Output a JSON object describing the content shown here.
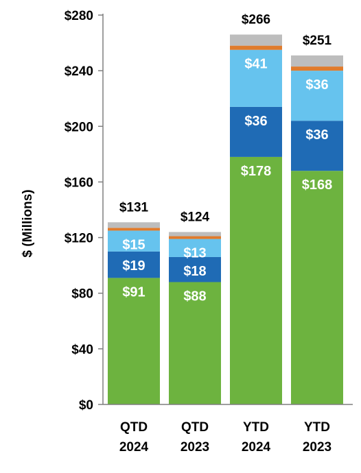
{
  "chart_data": {
    "type": "bar",
    "stacked": true,
    "categories": [
      [
        "QTD",
        "2024"
      ],
      [
        "QTD",
        "2023"
      ],
      [
        "YTD",
        "2024"
      ],
      [
        "YTD",
        "2023"
      ]
    ],
    "ylabel": "$ (Millions)",
    "ylim": [
      0,
      280
    ],
    "yticks": [
      0,
      40,
      80,
      120,
      160,
      200,
      240,
      280
    ],
    "ytick_labels": [
      "$0",
      "$40",
      "$80",
      "$120",
      "$160",
      "$200",
      "$240",
      "$280"
    ],
    "grid": false,
    "series": [
      {
        "values": [
          91,
          88,
          178,
          168
        ],
        "labels": [
          "$91",
          "$88",
          "$178",
          "$168"
        ],
        "color": "#6db33f"
      },
      {
        "values": [
          19,
          18,
          36,
          36
        ],
        "labels": [
          "$19",
          "$18",
          "$36",
          "$36"
        ],
        "color": "#1f6bb5"
      },
      {
        "values": [
          15,
          13,
          41,
          36
        ],
        "labels": [
          "$15",
          "$13",
          "$41",
          "$36"
        ],
        "color": "#66c3ee"
      },
      {
        "values": [
          2,
          2,
          3,
          3
        ],
        "color": "#e07b2c"
      },
      {
        "values": [
          4,
          3,
          8,
          8
        ],
        "color": "#bdbdbd"
      }
    ],
    "totals": [
      131,
      124,
      266,
      251
    ],
    "total_labels": [
      "$131",
      "$124",
      "$266",
      "$251"
    ]
  }
}
